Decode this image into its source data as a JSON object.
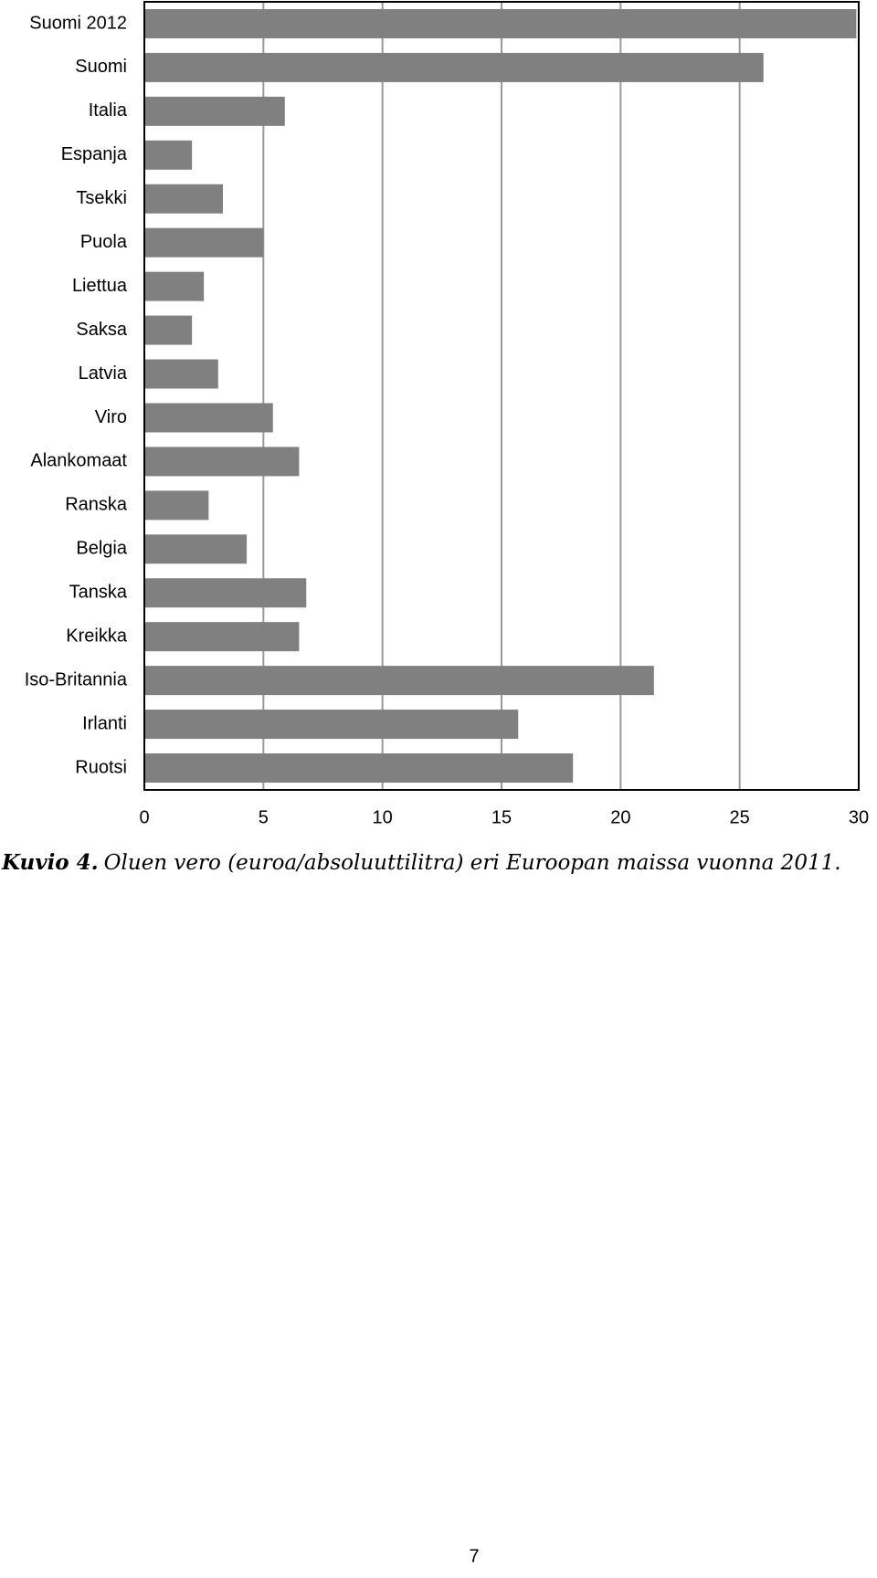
{
  "chart_data": {
    "type": "bar",
    "categories": [
      "Suomi 2012",
      "Suomi",
      "Italia",
      "Espanja",
      "Tsekki",
      "Puola",
      "Liettua",
      "Saksa",
      "Latvia",
      "Viro",
      "Alankomaat",
      "Ranska",
      "Belgia",
      "Tanska",
      "Kreikka",
      "Iso-Britannia",
      "Irlanti",
      "Ruotsi"
    ],
    "values": [
      29.9,
      26.0,
      5.9,
      2.0,
      3.3,
      5.0,
      2.5,
      2.0,
      3.1,
      5.4,
      6.5,
      2.7,
      4.3,
      6.8,
      6.5,
      21.4,
      15.7,
      18.0
    ],
    "color": "#808080",
    "xlim": [
      0,
      30
    ],
    "xticks": [
      0,
      5,
      10,
      15,
      20,
      25,
      30
    ],
    "grid": true
  },
  "caption": {
    "label": "Kuvio 4.",
    "text": "Oluen vero (euroa/absoluuttilitra) eri Euroopan maissa vuonna 2011."
  },
  "page_number": "7"
}
